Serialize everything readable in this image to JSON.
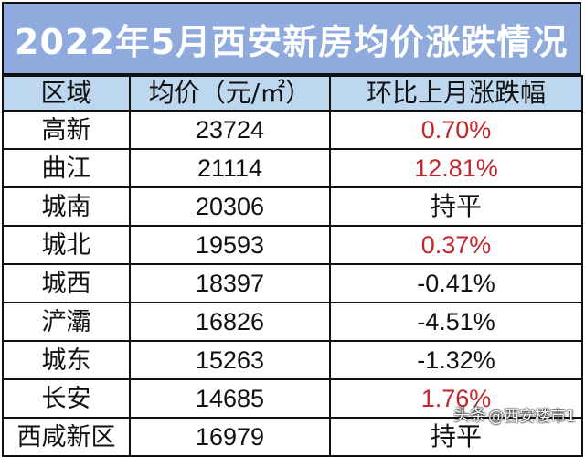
{
  "title": "2022年5月西安新房均价涨跌情况",
  "headers": {
    "district": "区域",
    "price": "均价（元/㎡）",
    "change": "环比上月涨跌幅"
  },
  "rows": [
    {
      "district": "高新",
      "price": "23724",
      "change": "0.70%",
      "trend": "up"
    },
    {
      "district": "曲江",
      "price": "21114",
      "change": "12.81%",
      "trend": "up"
    },
    {
      "district": "城南",
      "price": "20306",
      "change": "持平",
      "trend": "flat"
    },
    {
      "district": "城北",
      "price": "19593",
      "change": "0.37%",
      "trend": "up"
    },
    {
      "district": "城西",
      "price": "18397",
      "change": "-0.41%",
      "trend": "down"
    },
    {
      "district": "浐灞",
      "price": "16826",
      "change": "-4.51%",
      "trend": "down"
    },
    {
      "district": "城东",
      "price": "15263",
      "change": "-1.32%",
      "trend": "down"
    },
    {
      "district": "长安",
      "price": "14685",
      "change": "1.76%",
      "trend": "up"
    },
    {
      "district": "西咸新区",
      "price": "16979",
      "change": "持平",
      "trend": "flat"
    }
  ],
  "watermark": {
    "logo_text": "头条",
    "handle": "@西安楼市1"
  },
  "colors": {
    "title_background": "#8faadc",
    "header_background": "#bdd7ee",
    "rise_text": "#c0272d",
    "default_text": "#111111"
  }
}
